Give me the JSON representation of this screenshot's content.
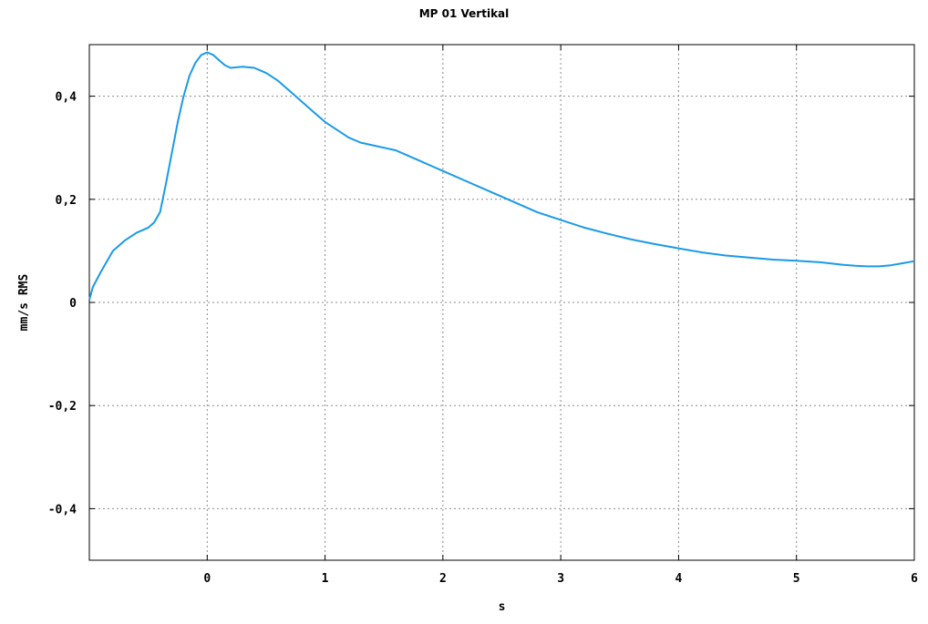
{
  "chart_data": {
    "type": "line",
    "title": "MP 01 Vertikal",
    "xlabel": "s",
    "ylabel": "mm/s RMS",
    "xlim": [
      -1,
      6
    ],
    "ylim": [
      -0.5,
      0.5
    ],
    "x_ticks": [
      0,
      1,
      2,
      3,
      4,
      5,
      6
    ],
    "x_tick_labels": [
      "0",
      "1",
      "2",
      "3",
      "4",
      "5",
      "6"
    ],
    "y_ticks": [
      0.4,
      0.2,
      0,
      -0.2,
      -0.4
    ],
    "y_tick_labels": [
      "0,4",
      "0,2",
      "0",
      "-0,2",
      "-0,4"
    ],
    "grid": true,
    "series": [
      {
        "color": "#1a9ae8",
        "x": [
          -1.0,
          -0.97,
          -0.9,
          -0.8,
          -0.7,
          -0.6,
          -0.5,
          -0.45,
          -0.4,
          -0.35,
          -0.3,
          -0.25,
          -0.2,
          -0.15,
          -0.1,
          -0.05,
          0.0,
          0.05,
          0.1,
          0.15,
          0.2,
          0.3,
          0.4,
          0.5,
          0.6,
          0.7,
          0.8,
          0.9,
          1.0,
          1.1,
          1.2,
          1.3,
          1.4,
          1.5,
          1.6,
          1.7,
          1.8,
          1.9,
          2.0,
          2.2,
          2.4,
          2.6,
          2.8,
          3.0,
          3.2,
          3.4,
          3.6,
          3.8,
          4.0,
          4.2,
          4.4,
          4.6,
          4.8,
          5.0,
          5.2,
          5.4,
          5.5,
          5.6,
          5.7,
          5.8,
          5.9,
          6.0
        ],
        "y": [
          0.005,
          0.03,
          0.06,
          0.1,
          0.12,
          0.135,
          0.145,
          0.155,
          0.175,
          0.23,
          0.29,
          0.35,
          0.4,
          0.44,
          0.465,
          0.48,
          0.485,
          0.48,
          0.47,
          0.46,
          0.455,
          0.457,
          0.455,
          0.445,
          0.43,
          0.41,
          0.39,
          0.37,
          0.35,
          0.335,
          0.32,
          0.31,
          0.305,
          0.3,
          0.295,
          0.285,
          0.275,
          0.265,
          0.255,
          0.235,
          0.215,
          0.195,
          0.175,
          0.16,
          0.145,
          0.133,
          0.122,
          0.113,
          0.105,
          0.097,
          0.091,
          0.087,
          0.083,
          0.081,
          0.078,
          0.073,
          0.071,
          0.07,
          0.07,
          0.072,
          0.076,
          0.08
        ]
      }
    ]
  }
}
